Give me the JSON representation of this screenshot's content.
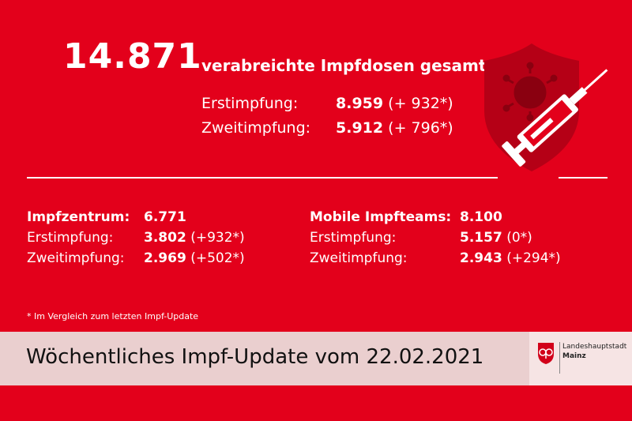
{
  "headline": {
    "total_number": "14.871",
    "total_label": "verabreichte Impfdosen gesamt"
  },
  "top_breakdown": [
    {
      "label": "Erstimpfung:",
      "value": "8.959",
      "delta": "(+ 932*)"
    },
    {
      "label": "Zweitimpfung:",
      "value": "5.912",
      "delta": "(+ 796*)"
    }
  ],
  "impfzentrum": {
    "title": "Impfzentrum:",
    "total": "6.771",
    "rows": [
      {
        "label": "Erstimpfung:",
        "value": "3.802",
        "delta": "(+932*)"
      },
      {
        "label": "Zweitimpfung:",
        "value": "2.969",
        "delta": "(+502*)"
      }
    ]
  },
  "mobile": {
    "title": "Mobile Impfteams:",
    "total": "8.100",
    "rows": [
      {
        "label": "Erstimpfung:",
        "value": "5.157",
        "delta": "(0*)"
      },
      {
        "label": "Zweitimpfung:",
        "value": "2.943",
        "delta": "(+294*)"
      }
    ]
  },
  "footnote": "* Im Vergleich zum letzten Impf-Update",
  "footer": {
    "title": "Wöchentliches Impf-Update vom 22.02.2021",
    "logo_line1": "Landeshauptstadt",
    "logo_line2": "Mainz"
  },
  "colors": {
    "background": "#e3001b",
    "footer_bar": "#eacfcf",
    "shield": "#b50016"
  },
  "icons": [
    "vaccine-shield-icon",
    "syringe-icon",
    "virus-icon",
    "mainz-coat-of-arms-icon"
  ]
}
